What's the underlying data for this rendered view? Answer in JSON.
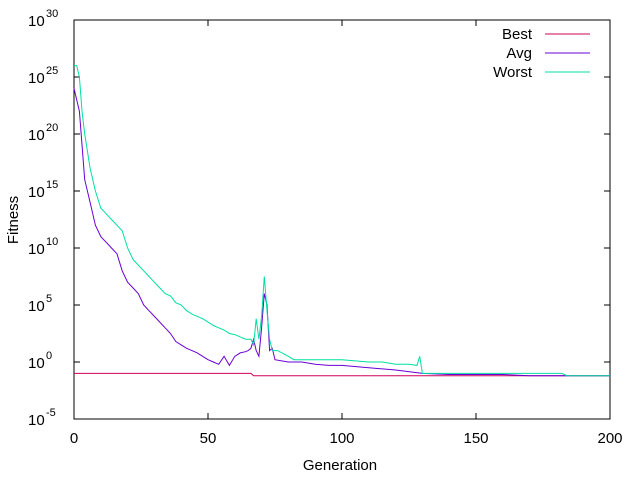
{
  "chart_data": {
    "type": "line",
    "title": "",
    "xlabel": "Generation",
    "ylabel": "Fitness",
    "xlim": [
      0,
      200
    ],
    "ylim_log10": [
      -5,
      30
    ],
    "y_scale": "log",
    "grid": false,
    "legend_position": "top-right",
    "x_ticks": [
      "0",
      "50",
      "100",
      "150",
      "200"
    ],
    "y_ticks": [
      {
        "base": "10",
        "exp": "-5"
      },
      {
        "base": "10",
        "exp": "0"
      },
      {
        "base": "10",
        "exp": "5"
      },
      {
        "base": "10",
        "exp": "10"
      },
      {
        "base": "10",
        "exp": "15"
      },
      {
        "base": "10",
        "exp": "20"
      },
      {
        "base": "10",
        "exp": "25"
      },
      {
        "base": "10",
        "exp": "30"
      }
    ],
    "series": [
      {
        "name": "Best",
        "color": "#d0005a",
        "points_log10": [
          [
            0,
            -1
          ],
          [
            66,
            -1
          ],
          [
            67,
            -1.2
          ],
          [
            100,
            -1.2
          ],
          [
            150,
            -1.2
          ],
          [
            200,
            -1.2
          ]
        ]
      },
      {
        "name": "Avg",
        "color": "#6a00d5",
        "points_log10": [
          [
            0,
            24
          ],
          [
            2,
            22
          ],
          [
            4,
            16
          ],
          [
            6,
            14
          ],
          [
            8,
            12
          ],
          [
            10,
            11
          ],
          [
            12,
            10.5
          ],
          [
            14,
            10
          ],
          [
            16,
            9.5
          ],
          [
            18,
            8
          ],
          [
            20,
            7
          ],
          [
            22,
            6.5
          ],
          [
            24,
            6
          ],
          [
            26,
            5
          ],
          [
            28,
            4.5
          ],
          [
            30,
            4
          ],
          [
            32,
            3.5
          ],
          [
            34,
            3
          ],
          [
            36,
            2.5
          ],
          [
            38,
            1.8
          ],
          [
            40,
            1.5
          ],
          [
            42,
            1.2
          ],
          [
            44,
            1
          ],
          [
            46,
            0.8
          ],
          [
            48,
            0.5
          ],
          [
            50,
            0.2
          ],
          [
            52,
            0
          ],
          [
            54,
            -0.2
          ],
          [
            56,
            0.5
          ],
          [
            58,
            -0.3
          ],
          [
            60,
            0.5
          ],
          [
            62,
            0.8
          ],
          [
            64,
            0.9
          ],
          [
            65,
            1
          ],
          [
            66,
            1.2
          ],
          [
            67,
            2
          ],
          [
            68,
            1
          ],
          [
            69,
            0.5
          ],
          [
            70,
            3
          ],
          [
            71,
            6
          ],
          [
            72,
            5
          ],
          [
            73,
            1
          ],
          [
            74,
            1.2
          ],
          [
            75,
            0.2
          ],
          [
            80,
            0
          ],
          [
            85,
            0
          ],
          [
            90,
            -0.2
          ],
          [
            95,
            -0.3
          ],
          [
            100,
            -0.3
          ],
          [
            110,
            -0.5
          ],
          [
            120,
            -0.7
          ],
          [
            130,
            -1
          ],
          [
            140,
            -1.1
          ],
          [
            150,
            -1.1
          ],
          [
            160,
            -1.1
          ],
          [
            170,
            -1.2
          ],
          [
            180,
            -1.2
          ],
          [
            200,
            -1.2
          ]
        ]
      },
      {
        "name": "Worst",
        "color": "#00e0a0",
        "points_log10": [
          [
            0,
            26
          ],
          [
            1,
            26
          ],
          [
            2,
            25
          ],
          [
            3,
            22
          ],
          [
            4,
            20
          ],
          [
            6,
            17
          ],
          [
            8,
            15
          ],
          [
            10,
            13.5
          ],
          [
            12,
            13
          ],
          [
            14,
            12.5
          ],
          [
            16,
            12
          ],
          [
            18,
            11.5
          ],
          [
            20,
            10
          ],
          [
            22,
            9
          ],
          [
            24,
            8.5
          ],
          [
            26,
            8
          ],
          [
            28,
            7.5
          ],
          [
            30,
            7
          ],
          [
            32,
            6.5
          ],
          [
            34,
            6
          ],
          [
            36,
            5.8
          ],
          [
            38,
            5.2
          ],
          [
            40,
            5
          ],
          [
            42,
            4.5
          ],
          [
            44,
            4.2
          ],
          [
            46,
            4
          ],
          [
            48,
            3.8
          ],
          [
            50,
            3.5
          ],
          [
            52,
            3.2
          ],
          [
            54,
            3
          ],
          [
            56,
            2.8
          ],
          [
            58,
            2.5
          ],
          [
            60,
            2.4
          ],
          [
            62,
            2.2
          ],
          [
            64,
            2
          ],
          [
            66,
            2
          ],
          [
            67,
            1.5
          ],
          [
            68,
            3.8
          ],
          [
            69,
            2
          ],
          [
            70,
            4
          ],
          [
            71,
            7.5
          ],
          [
            72,
            4.5
          ],
          [
            73,
            2
          ],
          [
            74,
            1
          ],
          [
            76,
            1
          ],
          [
            80,
            0.5
          ],
          [
            82,
            0.2
          ],
          [
            90,
            0.2
          ],
          [
            100,
            0.2
          ],
          [
            110,
            0
          ],
          [
            115,
            0
          ],
          [
            120,
            -0.2
          ],
          [
            125,
            -0.2
          ],
          [
            128,
            -0.3
          ],
          [
            129,
            0.5
          ],
          [
            130,
            -1
          ],
          [
            131,
            -1
          ],
          [
            140,
            -1
          ],
          [
            150,
            -1
          ],
          [
            160,
            -1
          ],
          [
            170,
            -1
          ],
          [
            180,
            -1
          ],
          [
            182,
            -1
          ],
          [
            184,
            -1.2
          ],
          [
            200,
            -1.2
          ]
        ]
      }
    ]
  }
}
